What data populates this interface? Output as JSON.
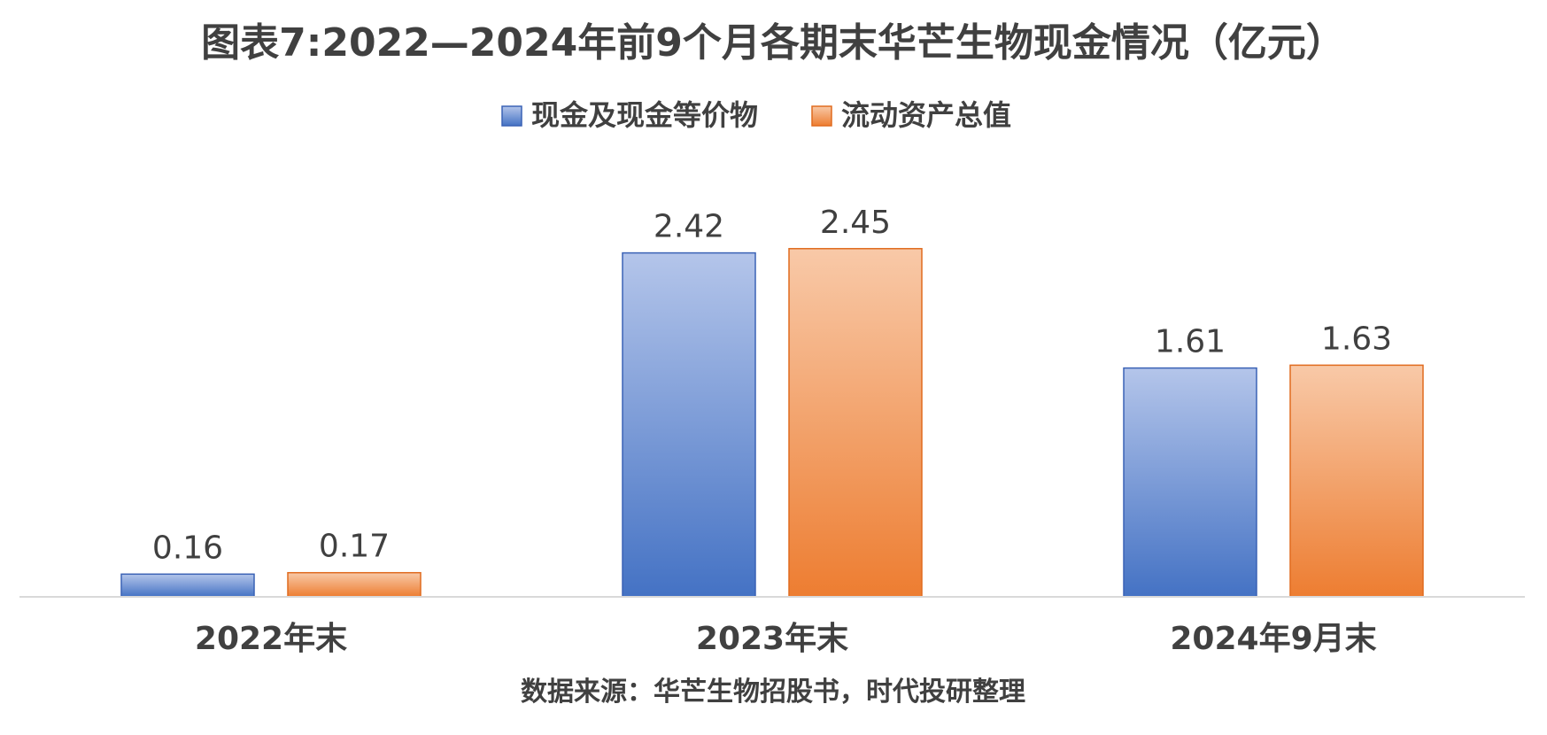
{
  "chart_data": {
    "type": "bar",
    "title": "图表7:2022—2024年前9个月各期末华芒生物现金情况（亿元）",
    "categories": [
      "2022年末",
      "2023年末",
      "2024年9月末"
    ],
    "series": [
      {
        "name": "现金及现金等价物",
        "values": [
          0.16,
          2.42,
          1.61
        ],
        "color": "#4472C4",
        "color_light": "#B4C5EA",
        "stroke": "#3A62B5"
      },
      {
        "name": "流动资产总值",
        "values": [
          0.17,
          2.45,
          1.63
        ],
        "color": "#ED7D31",
        "color_light": "#F8C9A8",
        "stroke": "#E06B1F"
      }
    ],
    "value_labels": [
      [
        "0.16",
        "2.42",
        "1.61"
      ],
      [
        "0.17",
        "2.45",
        "1.63"
      ]
    ],
    "ylim": [
      0,
      2.6
    ],
    "grid": false,
    "legend_position": "top-center",
    "source": "数据来源：华芒生物招股书，时代投研整理"
  }
}
